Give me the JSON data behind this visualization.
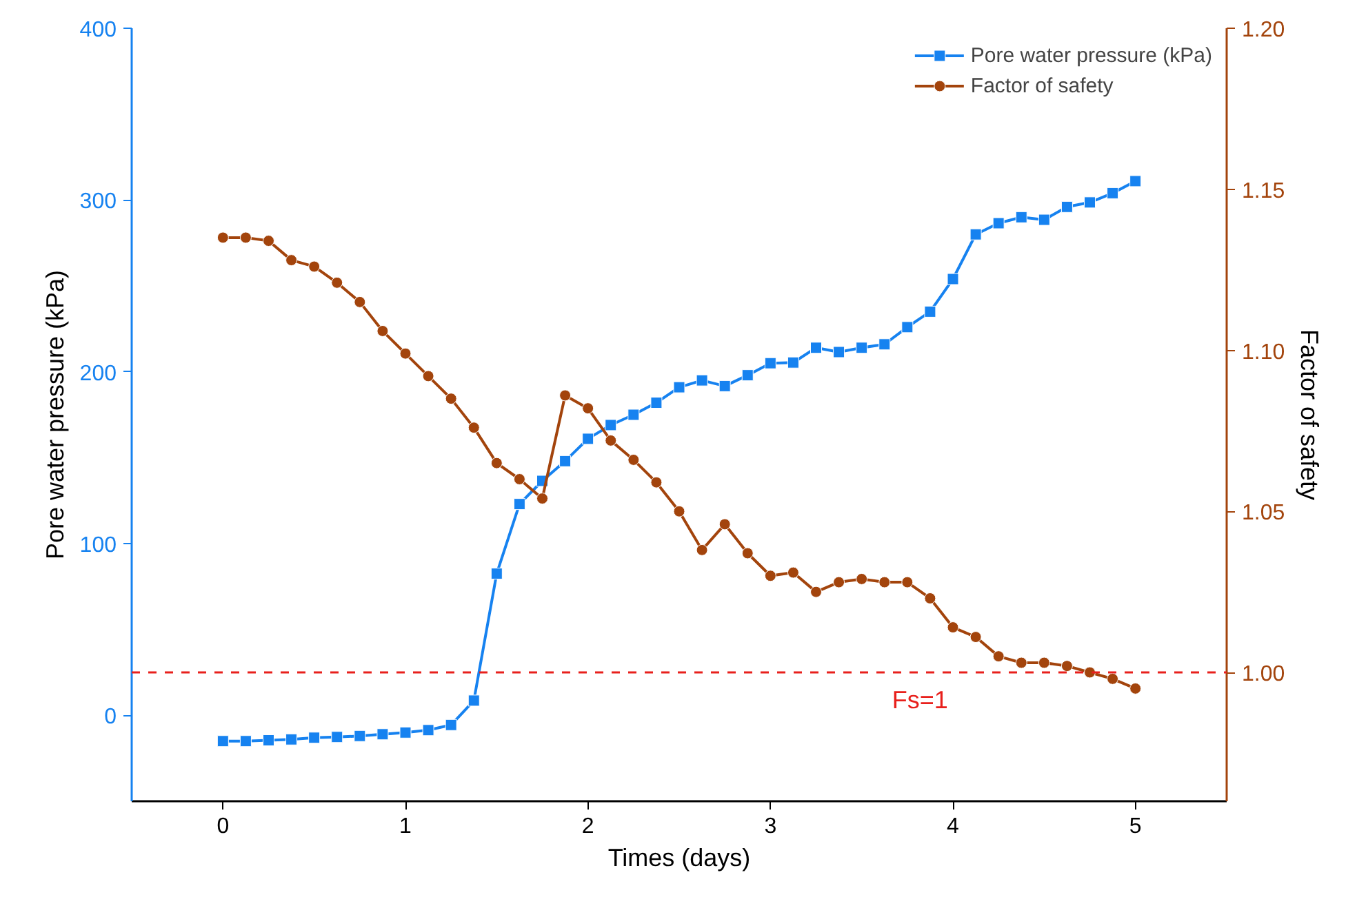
{
  "chart_data": {
    "type": "line",
    "xlabel": "Times (days)",
    "ylabel": "Pore water pressure (kPa)",
    "y2label": "Factor of safety",
    "x": [
      0,
      0.125,
      0.25,
      0.375,
      0.5,
      0.625,
      0.75,
      0.875,
      1,
      1.125,
      1.25,
      1.375,
      1.5,
      1.625,
      1.75,
      1.875,
      2,
      2.125,
      2.25,
      2.375,
      2.5,
      2.625,
      2.75,
      2.875,
      3,
      3.125,
      3.25,
      3.375,
      3.5,
      3.625,
      3.75,
      3.875,
      4,
      4.125,
      4.25,
      4.375,
      4.5,
      4.625,
      4.75,
      4.875,
      5
    ],
    "series": [
      {
        "name": "Pore water pressure (kPa)",
        "color": "#1682f0",
        "marker": "square",
        "values": [
          -15,
          -15,
          -14.5,
          -14,
          -13,
          -12.6,
          -12,
          -11,
          -10,
          -8.6,
          -5.6,
          8.6,
          82.5,
          123,
          136.5,
          148,
          161,
          169,
          175,
          182,
          191,
          195,
          191.7,
          198,
          205,
          205.4,
          214,
          211.5,
          214,
          216,
          226,
          235,
          254,
          280,
          286.5,
          290,
          288.5,
          296,
          298.6,
          304,
          311
        ]
      },
      {
        "name": "Factor of safety",
        "color": "#a3440c",
        "marker": "circle",
        "axis": "y2",
        "values": [
          1.135,
          1.135,
          1.134,
          1.128,
          1.126,
          1.121,
          1.115,
          1.106,
          1.099,
          1.092,
          1.085,
          1.076,
          1.065,
          1.06,
          1.054,
          1.086,
          1.082,
          1.072,
          1.066,
          1.059,
          1.05,
          1.038,
          1.046,
          1.037,
          1.03,
          1.031,
          1.025,
          1.028,
          1.029,
          1.028,
          1.028,
          1.023,
          1.014,
          1.011,
          1.005,
          1.003,
          1.003,
          1.002,
          1.0,
          0.998,
          0.995
        ]
      }
    ],
    "xlim": [
      -0.5,
      5.5
    ],
    "xticks": [
      0,
      1,
      2,
      3,
      4,
      5
    ],
    "ylim": [
      -50,
      400
    ],
    "yticks": [
      0,
      100,
      200,
      300,
      400
    ],
    "y2lim": [
      0.96,
      1.2
    ],
    "y2ticks": [
      {
        "value": 1.0,
        "label": "1.00"
      },
      {
        "value": 1.05,
        "label": "1.05"
      },
      {
        "value": 1.1,
        "label": "1.10"
      },
      {
        "value": 1.15,
        "label": "1.15"
      },
      {
        "value": 1.2,
        "label": "1.20"
      }
    ],
    "ref_lines": [
      {
        "axis": "y2",
        "value": 1.0,
        "label": "Fs=1",
        "color": "#e8201c",
        "line_style": "dashed"
      }
    ],
    "grid": false,
    "legend": "top right",
    "line_style": "solid"
  }
}
